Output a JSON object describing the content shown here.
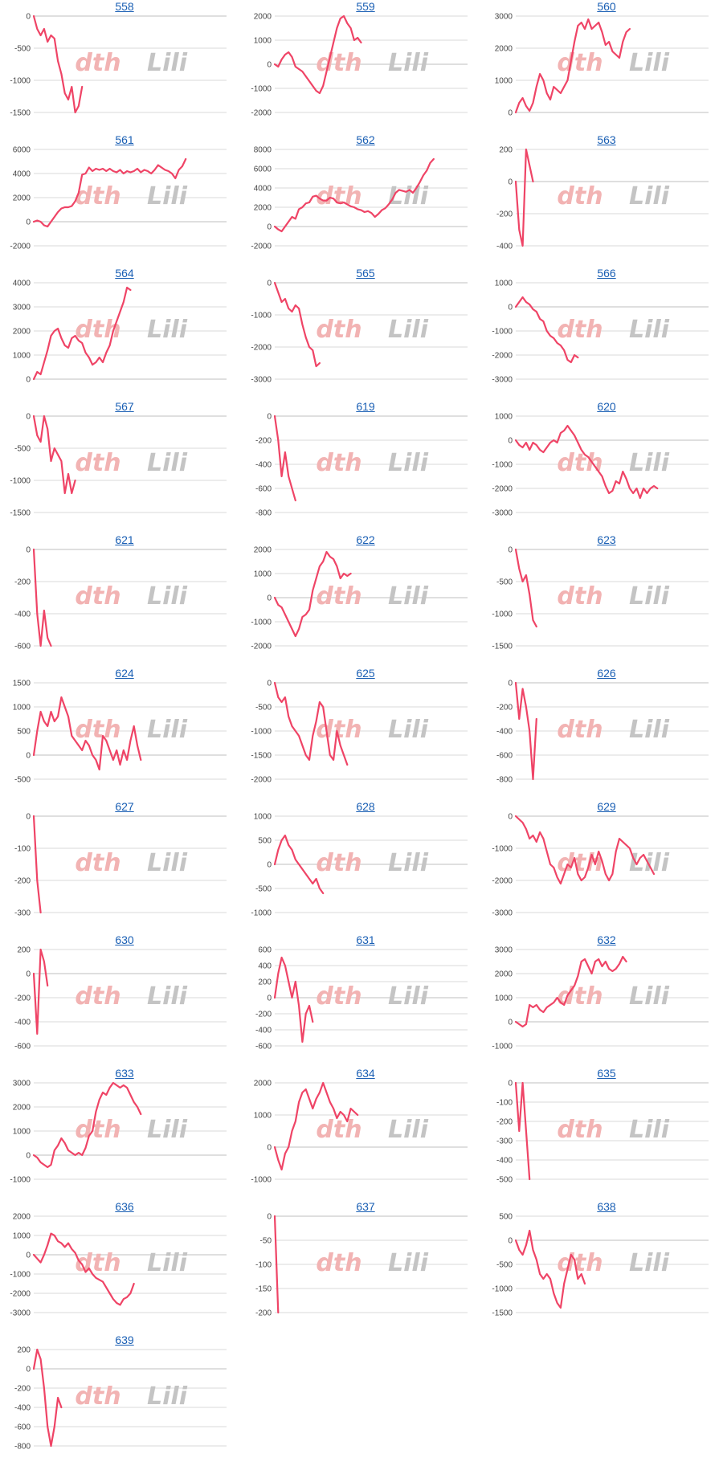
{
  "colors": {
    "line": "#ef4466",
    "grid": "#d9d9d9",
    "zero_line": "#bfbfbf",
    "link": "#1a5fb4",
    "watermark_left": "#f2b3b3",
    "watermark_right": "#c4c4c4"
  },
  "watermark": {
    "left": "dth",
    "right": "Lili"
  },
  "chart_data": [
    {
      "type": "line",
      "title": "558",
      "yticks": [
        "0",
        "-500",
        "-1000",
        "-1500"
      ],
      "ylim": [
        -1500,
        0
      ],
      "values": [
        0,
        -200,
        -300,
        -200,
        -400,
        -300,
        -350,
        -700,
        -900,
        -1200,
        -1300,
        -1100,
        -1500,
        -1400,
        -1100
      ]
    },
    {
      "type": "line",
      "title": "559",
      "yticks": [
        "2000",
        "1000",
        "0",
        "-1000",
        "-2000"
      ],
      "ylim": [
        -2000,
        2000
      ],
      "values": [
        0,
        -100,
        200,
        400,
        500,
        300,
        -100,
        -200,
        -300,
        -500,
        -700,
        -900,
        -1100,
        -1200,
        -900,
        -300,
        300,
        900,
        1500,
        1900,
        2000,
        1700,
        1500,
        1000,
        1100,
        900
      ]
    },
    {
      "type": "line",
      "title": "560",
      "yticks": [
        "3000",
        "2000",
        "1000",
        "0"
      ],
      "ylim": [
        0,
        3000
      ],
      "values": [
        0,
        300,
        450,
        200,
        50,
        300,
        800,
        1200,
        1000,
        600,
        400,
        800,
        700,
        600,
        800,
        1000,
        1600,
        2200,
        2700,
        2800,
        2600,
        2900,
        2600,
        2700,
        2800,
        2500,
        2100,
        2200,
        1900,
        1800,
        1700,
        2200,
        2500,
        2600
      ]
    },
    {
      "type": "line",
      "title": "561",
      "yticks": [
        "6000",
        "4000",
        "2000",
        "0",
        "-2000"
      ],
      "ylim": [
        -2000,
        6000
      ],
      "values": [
        0,
        100,
        0,
        -300,
        -400,
        0,
        400,
        800,
        1100,
        1200,
        1200,
        1300,
        1700,
        2400,
        3900,
        4000,
        4500,
        4200,
        4400,
        4300,
        4400,
        4200,
        4400,
        4200,
        4100,
        4300,
        4000,
        4200,
        4100,
        4200,
        4400,
        4100,
        4300,
        4200,
        4000,
        4300,
        4700,
        4500,
        4300,
        4200,
        4000,
        3600,
        4300,
        4600,
        5200
      ]
    },
    {
      "type": "line",
      "title": "562",
      "yticks": [
        "8000",
        "6000",
        "4000",
        "2000",
        "0",
        "-2000"
      ],
      "ylim": [
        -2000,
        8000
      ],
      "values": [
        0,
        -300,
        -500,
        0,
        500,
        1000,
        800,
        1800,
        2000,
        2400,
        2500,
        3100,
        3200,
        2900,
        2700,
        2700,
        3000,
        2900,
        2500,
        2400,
        2500,
        2300,
        2100,
        2000,
        1800,
        1700,
        1500,
        1600,
        1400,
        1000,
        1300,
        1700,
        1900,
        2300,
        2800,
        3500,
        3800,
        3700,
        3600,
        3800,
        3500,
        4000,
        4600,
        5300,
        5800,
        6600,
        7000
      ]
    },
    {
      "type": "line",
      "title": "563",
      "yticks": [
        "200",
        "0",
        "-200",
        "-400"
      ],
      "ylim": [
        -400,
        200
      ],
      "values": [
        0,
        -300,
        -400,
        200,
        100,
        0
      ]
    },
    {
      "type": "line",
      "title": "564",
      "yticks": [
        "4000",
        "3000",
        "2000",
        "1000",
        "0"
      ],
      "ylim": [
        0,
        4000
      ],
      "values": [
        0,
        300,
        200,
        700,
        1200,
        1800,
        2000,
        2100,
        1700,
        1400,
        1300,
        1700,
        1800,
        1600,
        1500,
        1100,
        900,
        600,
        700,
        900,
        700,
        1100,
        1400,
        2000,
        2400,
        2800,
        3200,
        3800,
        3700
      ]
    },
    {
      "type": "line",
      "title": "565",
      "yticks": [
        "0",
        "-1000",
        "-2000",
        "-3000"
      ],
      "ylim": [
        -3000,
        0
      ],
      "values": [
        0,
        -300,
        -600,
        -500,
        -800,
        -900,
        -700,
        -800,
        -1300,
        -1700,
        -2000,
        -2100,
        -2600,
        -2500
      ]
    },
    {
      "type": "line",
      "title": "566",
      "yticks": [
        "1000",
        "0",
        "-1000",
        "-2000",
        "-3000"
      ],
      "ylim": [
        -3000,
        1000
      ],
      "values": [
        0,
        200,
        400,
        200,
        100,
        -100,
        -200,
        -500,
        -600,
        -1000,
        -1200,
        -1300,
        -1500,
        -1600,
        -1800,
        -2200,
        -2300,
        -2000,
        -2100
      ]
    },
    {
      "type": "line",
      "title": "567",
      "yticks": [
        "0",
        "-500",
        "-1000",
        "-1500"
      ],
      "ylim": [
        -1500,
        0
      ],
      "values": [
        0,
        -300,
        -400,
        0,
        -200,
        -700,
        -500,
        -600,
        -700,
        -1200,
        -900,
        -1200,
        -1000
      ]
    },
    {
      "type": "line",
      "title": "619",
      "yticks": [
        "0",
        "-200",
        "-400",
        "-600",
        "-800"
      ],
      "ylim": [
        -800,
        0
      ],
      "values": [
        0,
        -200,
        -500,
        -300,
        -500,
        -600,
        -700
      ]
    },
    {
      "type": "line",
      "title": "620",
      "yticks": [
        "1000",
        "0",
        "-1000",
        "-2000",
        "-3000"
      ],
      "ylim": [
        -3000,
        1000
      ],
      "values": [
        0,
        -200,
        -300,
        -100,
        -400,
        -100,
        -200,
        -400,
        -500,
        -300,
        -100,
        0,
        -100,
        300,
        400,
        600,
        400,
        200,
        -100,
        -400,
        -600,
        -700,
        -900,
        -1100,
        -1300,
        -1500,
        -1900,
        -2200,
        -2100,
        -1700,
        -1800,
        -1300,
        -1600,
        -2000,
        -2200,
        -2000,
        -2400,
        -2000,
        -2200,
        -2000,
        -1900,
        -2000
      ]
    },
    {
      "type": "line",
      "title": "621",
      "yticks": [
        "0",
        "-200",
        "-400",
        "-600"
      ],
      "ylim": [
        -600,
        0
      ],
      "values": [
        0,
        -400,
        -600,
        -380,
        -550,
        -600
      ]
    },
    {
      "type": "line",
      "title": "622",
      "yticks": [
        "2000",
        "1000",
        "0",
        "-1000",
        "-2000"
      ],
      "ylim": [
        -2000,
        2000
      ],
      "values": [
        0,
        -300,
        -400,
        -700,
        -1000,
        -1300,
        -1600,
        -1300,
        -800,
        -700,
        -500,
        300,
        800,
        1300,
        1500,
        1900,
        1700,
        1600,
        1300,
        800,
        1000,
        900,
        1000
      ]
    },
    {
      "type": "line",
      "title": "623",
      "yticks": [
        "0",
        "-500",
        "-1000",
        "-1500"
      ],
      "ylim": [
        -1500,
        0
      ],
      "values": [
        0,
        -300,
        -500,
        -400,
        -700,
        -1100,
        -1200
      ]
    },
    {
      "type": "line",
      "title": "624",
      "yticks": [
        "1500",
        "1000",
        "500",
        "0",
        "-500"
      ],
      "ylim": [
        -500,
        1500
      ],
      "values": [
        0,
        500,
        900,
        700,
        600,
        900,
        700,
        800,
        1200,
        1000,
        800,
        400,
        300,
        200,
        100,
        300,
        200,
        0,
        -100,
        -300,
        400,
        300,
        100,
        -100,
        100,
        -200,
        100,
        -100,
        300,
        600,
        200,
        -100
      ]
    },
    {
      "type": "line",
      "title": "625",
      "yticks": [
        "0",
        "-500",
        "-1000",
        "-1500",
        "-2000"
      ],
      "ylim": [
        -2000,
        0
      ],
      "values": [
        0,
        -300,
        -400,
        -300,
        -700,
        -900,
        -1000,
        -1100,
        -1300,
        -1500,
        -1600,
        -1100,
        -800,
        -400,
        -500,
        -1000,
        -1500,
        -1600,
        -1000,
        -1300,
        -1500,
        -1700
      ]
    },
    {
      "type": "line",
      "title": "626",
      "yticks": [
        "0",
        "-200",
        "-400",
        "-600",
        "-800"
      ],
      "ylim": [
        -800,
        0
      ],
      "values": [
        0,
        -300,
        -50,
        -200,
        -400,
        -800,
        -300
      ]
    },
    {
      "type": "line",
      "title": "627",
      "yticks": [
        "0",
        "-100",
        "-200",
        "-300"
      ],
      "ylim": [
        -300,
        0
      ],
      "values": [
        0,
        -200,
        -300
      ]
    },
    {
      "type": "line",
      "title": "628",
      "yticks": [
        "1000",
        "500",
        "0",
        "-500",
        "-1000"
      ],
      "ylim": [
        -1000,
        1000
      ],
      "values": [
        0,
        300,
        500,
        600,
        400,
        300,
        100,
        0,
        -100,
        -200,
        -300,
        -400,
        -300,
        -500,
        -600
      ]
    },
    {
      "type": "line",
      "title": "629",
      "yticks": [
        "0",
        "-1000",
        "-2000",
        "-3000"
      ],
      "ylim": [
        -3000,
        0
      ],
      "values": [
        0,
        -100,
        -200,
        -400,
        -700,
        -600,
        -800,
        -500,
        -700,
        -1100,
        -1500,
        -1600,
        -1900,
        -2100,
        -1800,
        -1500,
        -1600,
        -1300,
        -1800,
        -2000,
        -1900,
        -1600,
        -1200,
        -1500,
        -1100,
        -1400,
        -1800,
        -2000,
        -1800,
        -1100,
        -700,
        -800,
        -900,
        -1000,
        -1300,
        -1500,
        -1300,
        -1200,
        -1400,
        -1600,
        -1800
      ]
    },
    {
      "type": "line",
      "title": "630",
      "yticks": [
        "200",
        "0",
        "-200",
        "-400",
        "-600"
      ],
      "ylim": [
        -600,
        200
      ],
      "values": [
        0,
        -500,
        200,
        100,
        -100
      ]
    },
    {
      "type": "line",
      "title": "631",
      "yticks": [
        "600",
        "400",
        "200",
        "0",
        "-200",
        "-400",
        "-600"
      ],
      "ylim": [
        -600,
        600
      ],
      "values": [
        0,
        300,
        500,
        400,
        200,
        0,
        200,
        -100,
        -550,
        -200,
        -100,
        -300
      ]
    },
    {
      "type": "line",
      "title": "632",
      "yticks": [
        "3000",
        "2000",
        "1000",
        "0",
        "-1000"
      ],
      "ylim": [
        -1000,
        3000
      ],
      "values": [
        0,
        -100,
        -200,
        -100,
        700,
        600,
        700,
        500,
        400,
        600,
        700,
        800,
        1000,
        800,
        700,
        1100,
        1300,
        1500,
        1900,
        2500,
        2600,
        2300,
        2000,
        2500,
        2600,
        2300,
        2500,
        2200,
        2100,
        2200,
        2400,
        2700,
        2500
      ]
    },
    {
      "type": "line",
      "title": "633",
      "yticks": [
        "3000",
        "2000",
        "1000",
        "0",
        "-1000"
      ],
      "ylim": [
        -1000,
        3000
      ],
      "values": [
        0,
        -100,
        -300,
        -400,
        -500,
        -400,
        200,
        400,
        700,
        500,
        200,
        100,
        0,
        100,
        0,
        300,
        800,
        1000,
        1800,
        2300,
        2600,
        2500,
        2800,
        3000,
        2900,
        2800,
        2900,
        2800,
        2500,
        2200,
        2000,
        1700
      ]
    },
    {
      "type": "line",
      "title": "634",
      "yticks": [
        "2000",
        "1000",
        "0",
        "-1000"
      ],
      "ylim": [
        -1000,
        2000
      ],
      "values": [
        0,
        -400,
        -700,
        -200,
        0,
        500,
        800,
        1400,
        1700,
        1800,
        1500,
        1200,
        1500,
        1700,
        2000,
        1700,
        1400,
        1200,
        900,
        1100,
        1000,
        800,
        1200,
        1100,
        1000
      ]
    },
    {
      "type": "line",
      "title": "635",
      "yticks": [
        "0",
        "-100",
        "-200",
        "-300",
        "-400",
        "-500"
      ],
      "ylim": [
        -500,
        0
      ],
      "values": [
        0,
        -250,
        0,
        -250,
        -500
      ]
    },
    {
      "type": "line",
      "title": "636",
      "yticks": [
        "2000",
        "1000",
        "0",
        "-1000",
        "-2000",
        "-3000"
      ],
      "ylim": [
        -3000,
        2000
      ],
      "values": [
        0,
        -200,
        -400,
        0,
        500,
        1100,
        1000,
        700,
        600,
        400,
        600,
        300,
        100,
        -300,
        -500,
        -900,
        -700,
        -1000,
        -1200,
        -1300,
        -1400,
        -1700,
        -2000,
        -2300,
        -2500,
        -2600,
        -2300,
        -2200,
        -2000,
        -1500
      ]
    },
    {
      "type": "line",
      "title": "637",
      "yticks": [
        "0",
        "-50",
        "-100",
        "-150",
        "-200"
      ],
      "ylim": [
        -200,
        0
      ],
      "values": [
        0,
        -200
      ]
    },
    {
      "type": "line",
      "title": "638",
      "yticks": [
        "500",
        "0",
        "-500",
        "-1000",
        "-1500"
      ],
      "ylim": [
        -1500,
        500
      ],
      "values": [
        0,
        -200,
        -300,
        -100,
        200,
        -200,
        -400,
        -700,
        -800,
        -700,
        -800,
        -1100,
        -1300,
        -1400,
        -900,
        -600,
        -300,
        -400,
        -800,
        -700,
        -900
      ]
    },
    {
      "type": "line",
      "title": "639",
      "yticks": [
        "200",
        "0",
        "-200",
        "-400",
        "-600",
        "-800"
      ],
      "ylim": [
        -800,
        200
      ],
      "values": [
        0,
        200,
        100,
        -200,
        -600,
        -800,
        -600,
        -300,
        -400
      ]
    }
  ]
}
